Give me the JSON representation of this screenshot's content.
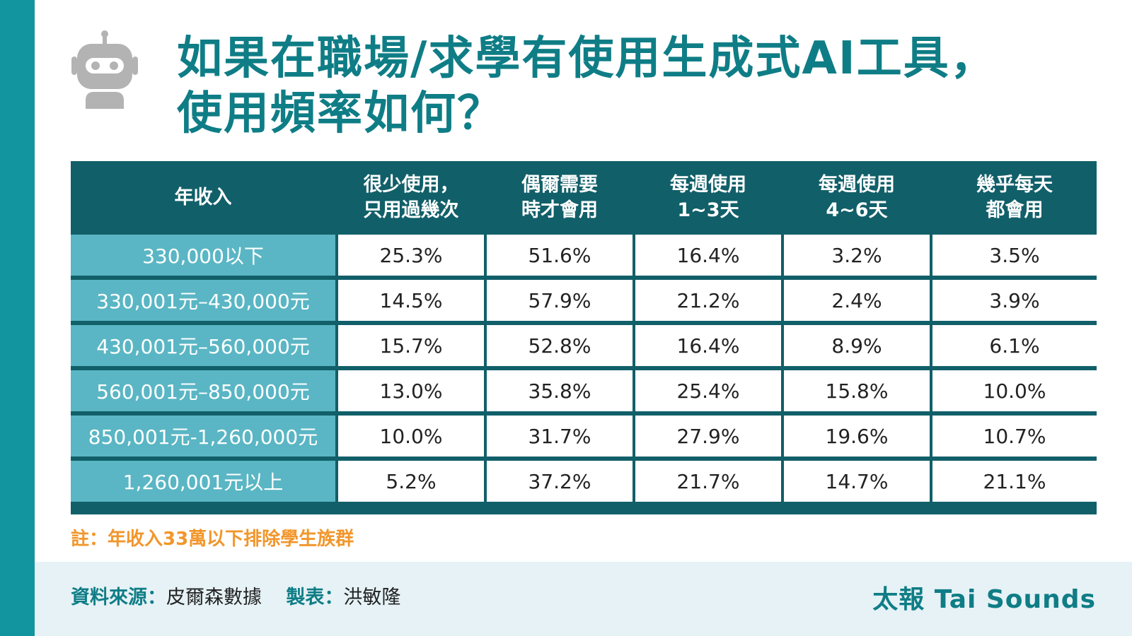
{
  "title": {
    "line1": "如果在職場/求學有使用生成式AI工具，",
    "line2": "使用頻率如何？"
  },
  "chart_data": {
    "type": "table",
    "row_header": "年收入",
    "columns": [
      "很少使用，\n只用過幾次",
      "偶爾需要\n時才會用",
      "每週使用\n1~3天",
      "每週使用\n4~6天",
      "幾乎每天\n都會用"
    ],
    "rows": [
      {
        "label": "330,000以下",
        "values": [
          "25.3%",
          "51.6%",
          "16.4%",
          "3.2%",
          "3.5%"
        ]
      },
      {
        "label": "330,001元–430,000元",
        "values": [
          "14.5%",
          "57.9%",
          "21.2%",
          "2.4%",
          "3.9%"
        ]
      },
      {
        "label": "430,001元–560,000元",
        "values": [
          "15.7%",
          "52.8%",
          "16.4%",
          "8.9%",
          "6.1%"
        ]
      },
      {
        "label": "560,001元–850,000元",
        "values": [
          "13.0%",
          "35.8%",
          "25.4%",
          "15.8%",
          "10.0%"
        ]
      },
      {
        "label": "850,001元-1,260,000元",
        "values": [
          "10.0%",
          "31.7%",
          "27.9%",
          "19.6%",
          "10.7%"
        ]
      },
      {
        "label": "1,260,001元以上",
        "values": [
          "5.2%",
          "37.2%",
          "21.7%",
          "14.7%",
          "21.1%"
        ]
      }
    ]
  },
  "note": "註：年收入33萬以下排除學生族群",
  "footer": {
    "source_key": "資料來源：",
    "source_value": "皮爾森數據",
    "maker_key": "製表：",
    "maker_value": "洪敏隆",
    "brand": "太報 Tai Sounds"
  },
  "colors": {
    "accent": "#13959f",
    "title": "#0f7d86",
    "header_bg": "#115f69",
    "row_label_bg": "#5ab6c4",
    "note": "#f2962b",
    "footer_bg": "#e6f2f6"
  },
  "icon": "robot-icon"
}
